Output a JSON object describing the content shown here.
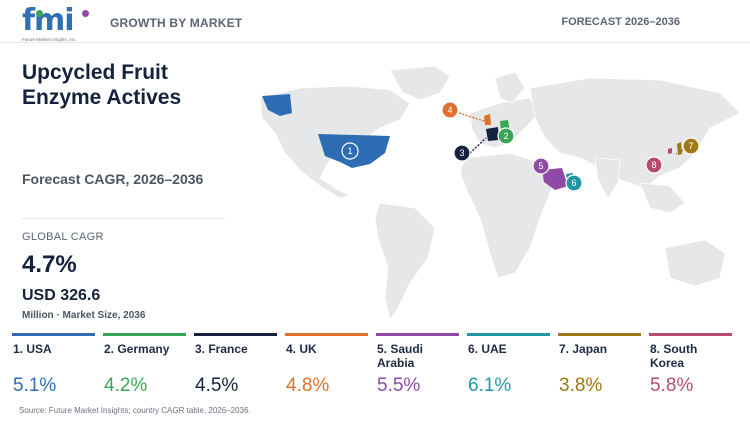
{
  "header": {
    "logo_text": "fmi",
    "logo_sub": "Future Market Insights, Inc.",
    "section": "GROWTH BY MARKET",
    "forecast_period": "FORECAST 2026–2036"
  },
  "title": "Upcycled Fruit Enzyme Actives",
  "forecast_label": "Forecast CAGR, 2026–2036",
  "global": {
    "label": "GLOBAL CAGR",
    "cagr": "4.7%",
    "market_size": "USD 326.6",
    "market_note": "Million · Market Size, 2036"
  },
  "markers": [
    "1",
    "2",
    "3",
    "4",
    "5",
    "6",
    "7",
    "8"
  ],
  "countries": [
    {
      "name": "1. USA",
      "cagr": "5.1%",
      "color": "#2e6db4"
    },
    {
      "name": "2. Germany",
      "cagr": "4.2%",
      "color": "#3aa655"
    },
    {
      "name": "3. France",
      "cagr": "4.5%",
      "color": "#15213d"
    },
    {
      "name": "4. UK",
      "cagr": "4.8%",
      "color": "#e0712c"
    },
    {
      "name": "5. Saudi Arabia",
      "cagr": "5.5%",
      "color": "#8e4ba6"
    },
    {
      "name": "6. UAE",
      "cagr": "6.1%",
      "color": "#1f97a6"
    },
    {
      "name": "7. Japan",
      "cagr": "3.8%",
      "color": "#a07815"
    },
    {
      "name": "8. South Korea",
      "cagr": "5.8%",
      "color": "#b84a6e"
    }
  ],
  "source": "Source: Future Market Insights; country CAGR table, 2026–2036."
}
